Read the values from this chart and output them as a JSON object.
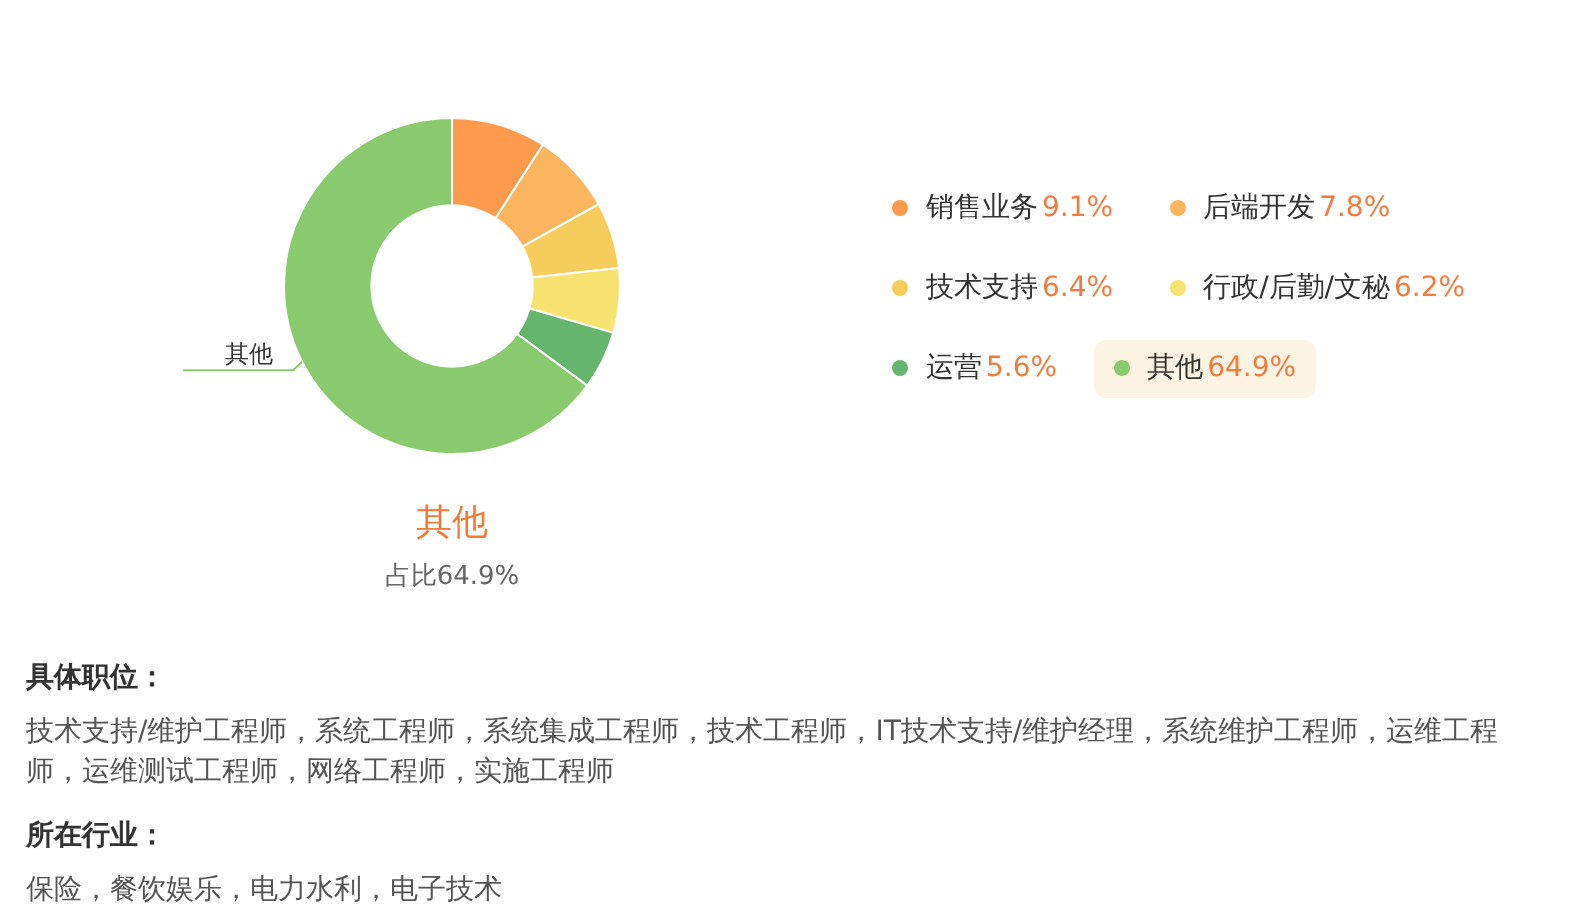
{
  "chart_data": {
    "type": "donut",
    "categories": [
      "销售业务",
      "后端开发",
      "技术支持",
      "行政/后勤/文秘",
      "运营",
      "其他"
    ],
    "values": [
      9.1,
      7.8,
      6.4,
      6.2,
      5.6,
      64.9
    ],
    "colors": [
      "#fe9a4e",
      "#fcb55f",
      "#f6cd5d",
      "#f7e270",
      "#66b56f",
      "#8aca6e"
    ],
    "value_labels": [
      "9.1%",
      "7.8%",
      "6.4%",
      "6.2%",
      "5.6%",
      "64.9%"
    ],
    "legend": "right",
    "annotations": [
      "其他",
      "占比64.9%",
      "具体职位：",
      "技术支持/维护工程师，系统工程师，系统集成工程师，技术工程师，IT技术支持/维护经理，系统维护工程师，运维工程师，运维测试工程师，网络工程师，实施工程师",
      "所在行业：",
      "保险，餐饮娱乐，电力水利，电子技术"
    ]
  }
}
